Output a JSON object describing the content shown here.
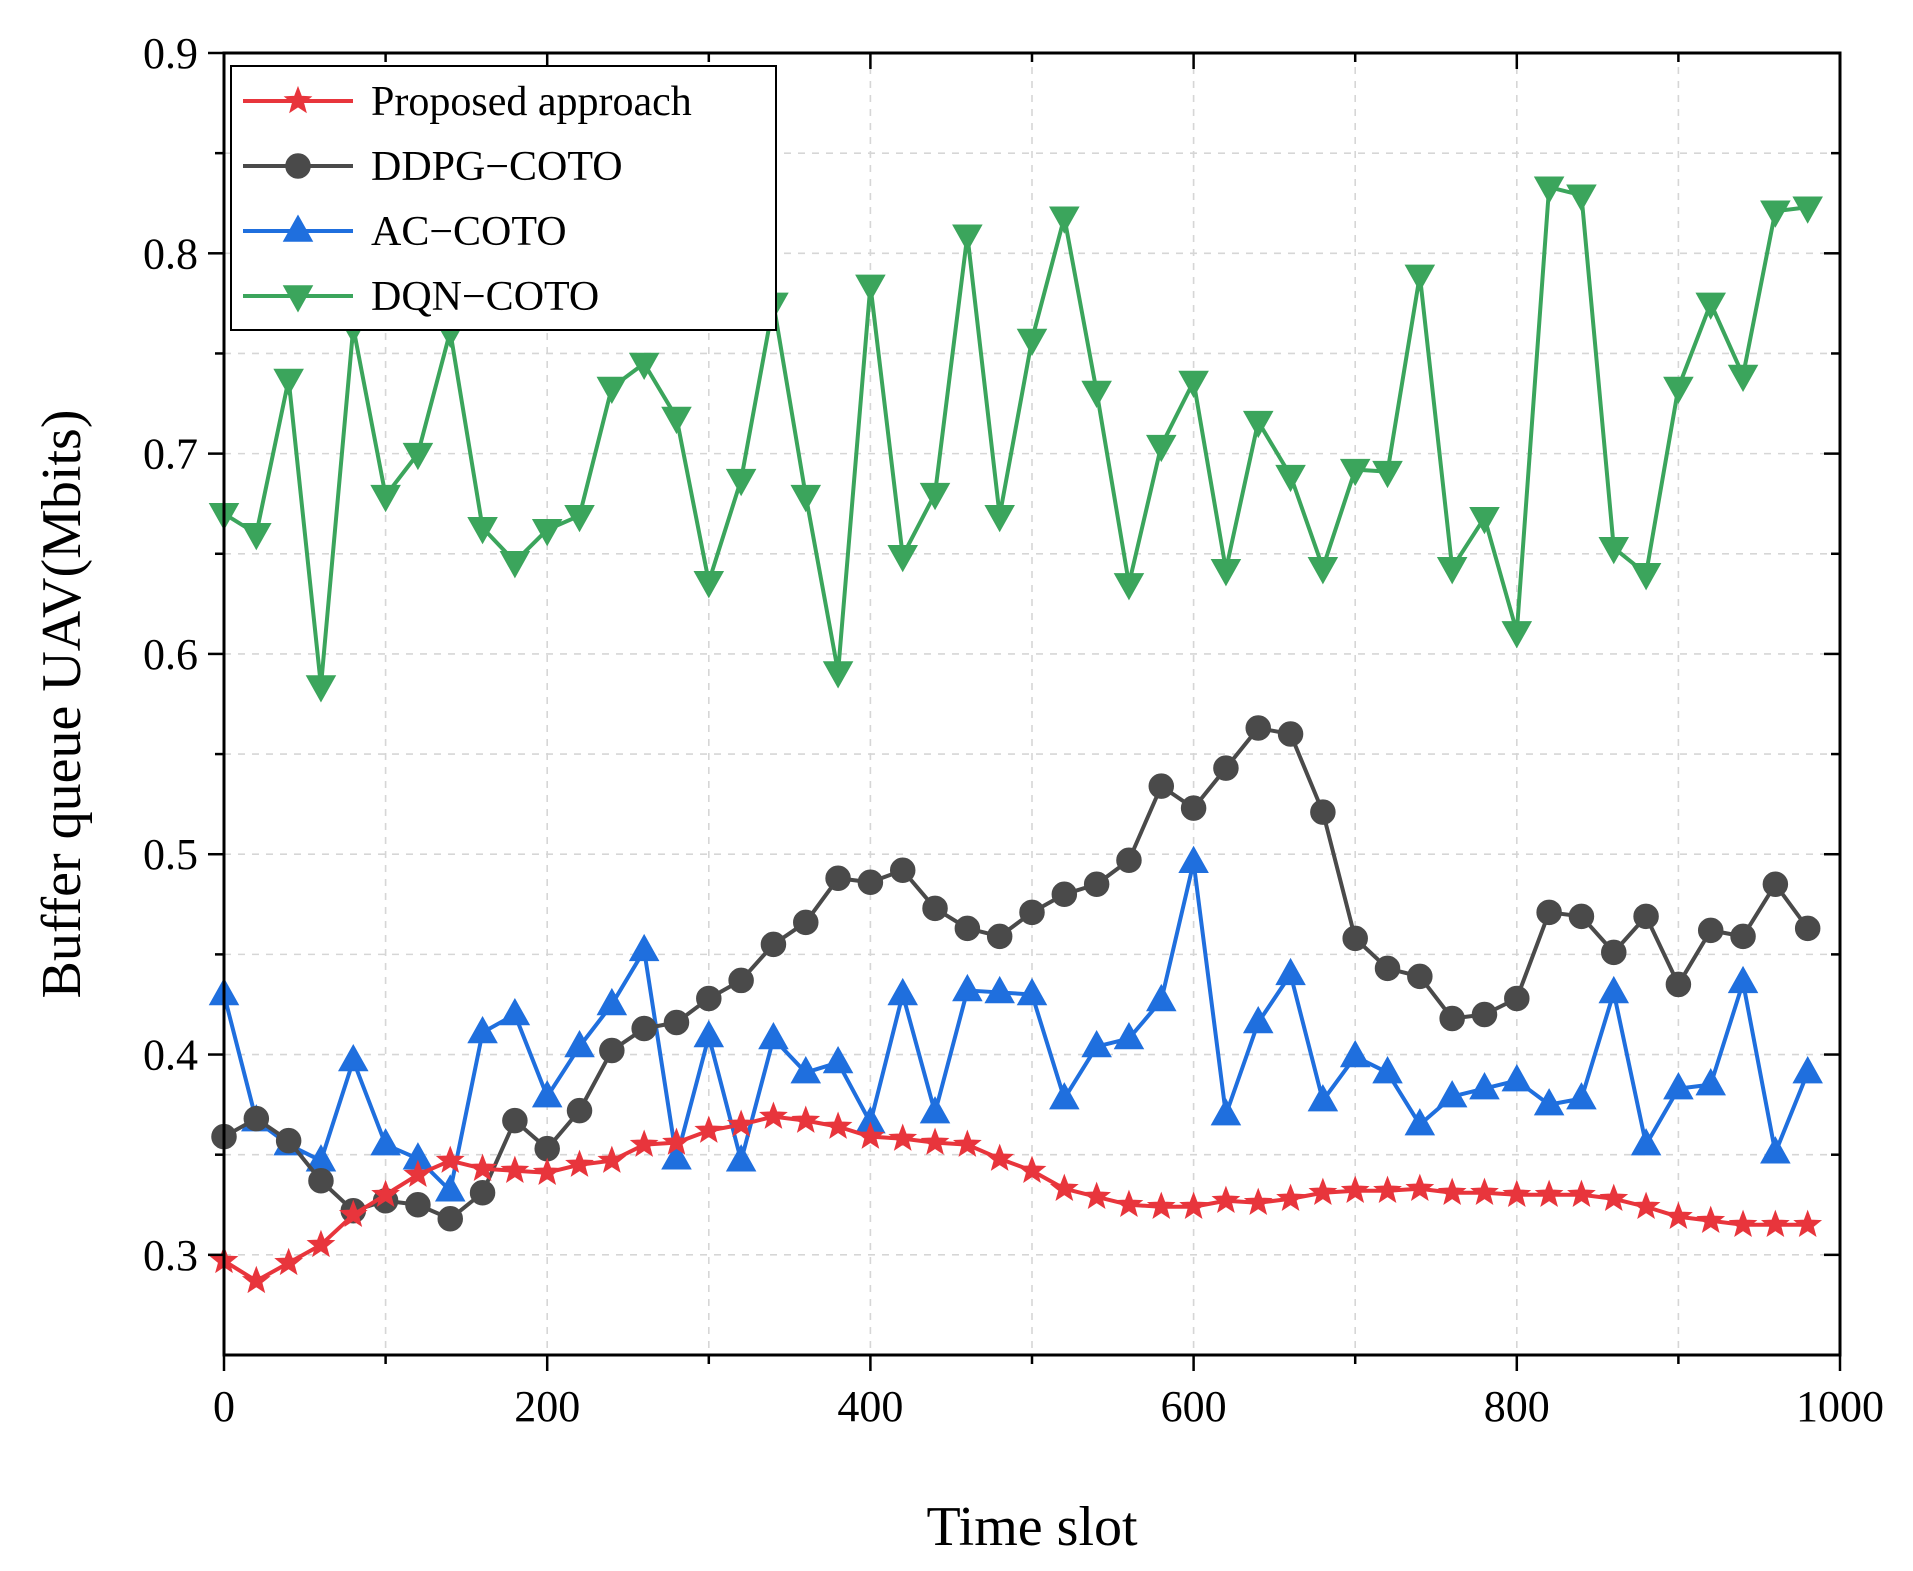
{
  "chart_data": {
    "type": "line",
    "title": "",
    "xlabel": "Time slot",
    "ylabel": "Buffer queue UAV(Mbits)",
    "xlim": [
      0,
      1000
    ],
    "ylim": [
      0.25,
      0.9
    ],
    "x_ticks": [
      0,
      200,
      400,
      600,
      800,
      1000
    ],
    "x_tick_labels": [
      "0",
      "200",
      "400",
      "600",
      "800",
      "1000"
    ],
    "y_ticks": [
      0.3,
      0.4,
      0.5,
      0.6,
      0.7,
      0.8,
      0.9
    ],
    "y_tick_labels": [
      "0.3",
      "0.4",
      "0.5",
      "0.6",
      "0.7",
      "0.8",
      "0.9"
    ],
    "grid": true,
    "legend_position": "top-left",
    "x": [
      0,
      20,
      40,
      60,
      80,
      100,
      120,
      140,
      160,
      180,
      200,
      220,
      240,
      260,
      280,
      300,
      320,
      340,
      360,
      380,
      400,
      420,
      440,
      460,
      480,
      500,
      520,
      540,
      560,
      580,
      600,
      620,
      640,
      660,
      680,
      700,
      720,
      740,
      760,
      780,
      800,
      820,
      840,
      860,
      880,
      900,
      920,
      940,
      960,
      980
    ],
    "series": [
      {
        "name": "Proposed approach",
        "color": "#e8353c",
        "marker": "star",
        "values": [
          0.297,
          0.287,
          0.296,
          0.305,
          0.32,
          0.33,
          0.34,
          0.347,
          0.343,
          0.342,
          0.341,
          0.345,
          0.347,
          0.355,
          0.356,
          0.362,
          0.365,
          0.369,
          0.367,
          0.364,
          0.359,
          0.358,
          0.356,
          0.355,
          0.348,
          0.342,
          0.333,
          0.329,
          0.325,
          0.324,
          0.324,
          0.327,
          0.326,
          0.328,
          0.331,
          0.332,
          0.332,
          0.333,
          0.331,
          0.331,
          0.33,
          0.33,
          0.33,
          0.328,
          0.324,
          0.319,
          0.317,
          0.315,
          0.315,
          0.315
        ]
      },
      {
        "name": "DDPG−COTO",
        "color": "#4a4a4a",
        "marker": "circle",
        "values": [
          0.359,
          0.368,
          0.357,
          0.337,
          0.322,
          0.327,
          0.325,
          0.318,
          0.331,
          0.367,
          0.353,
          0.372,
          0.402,
          0.413,
          0.416,
          0.428,
          0.437,
          0.455,
          0.466,
          0.488,
          0.486,
          0.492,
          0.473,
          0.463,
          0.459,
          0.471,
          0.48,
          0.485,
          0.497,
          0.534,
          0.523,
          0.543,
          0.563,
          0.56,
          0.521,
          0.458,
          0.443,
          0.439,
          0.418,
          0.42,
          0.428,
          0.471,
          0.469,
          0.451,
          0.469,
          0.435,
          0.462,
          0.459,
          0.485,
          0.463
        ]
      },
      {
        "name": "AC−COTO",
        "color": "#1f6fde",
        "marker": "triangle-up",
        "values": [
          0.43,
          0.367,
          0.355,
          0.347,
          0.397,
          0.355,
          0.348,
          0.332,
          0.411,
          0.42,
          0.379,
          0.404,
          0.425,
          0.452,
          0.348,
          0.409,
          0.347,
          0.408,
          0.391,
          0.396,
          0.366,
          0.43,
          0.371,
          0.432,
          0.431,
          0.43,
          0.378,
          0.404,
          0.408,
          0.427,
          0.496,
          0.37,
          0.416,
          0.44,
          0.377,
          0.399,
          0.391,
          0.365,
          0.379,
          0.383,
          0.387,
          0.375,
          0.378,
          0.431,
          0.355,
          0.383,
          0.385,
          0.436,
          0.351,
          0.391
        ]
      },
      {
        "name": "DQN−COTO",
        "color": "#3ba55c",
        "marker": "triangle-down",
        "values": [
          0.67,
          0.66,
          0.737,
          0.584,
          0.763,
          0.679,
          0.7,
          0.761,
          0.663,
          0.646,
          0.662,
          0.669,
          0.733,
          0.745,
          0.718,
          0.636,
          0.687,
          0.775,
          0.679,
          0.591,
          0.784,
          0.649,
          0.68,
          0.809,
          0.669,
          0.757,
          0.818,
          0.731,
          0.635,
          0.704,
          0.736,
          0.642,
          0.716,
          0.689,
          0.643,
          0.692,
          0.691,
          0.789,
          0.643,
          0.668,
          0.611,
          0.833,
          0.829,
          0.653,
          0.64,
          0.733,
          0.775,
          0.739,
          0.821,
          0.823
        ]
      }
    ]
  }
}
